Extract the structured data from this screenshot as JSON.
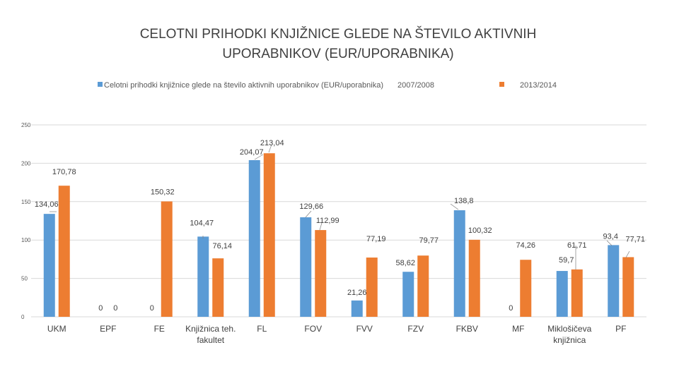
{
  "chart_data": {
    "type": "bar",
    "title_lines": [
      "CELOTNI PRIHODKI KNJIŽNICE GLEDE NA ŠTEVILO AKTIVNIH",
      "UPORABNIKOV (EUR/UPORABNIKA)"
    ],
    "legend": [
      {
        "label": "Celotni prihodki knjižnice glede na število aktivnih uporabnikov (EUR/uporabnika)",
        "color": "#5b9bd5"
      },
      {
        "label": "2007/2008",
        "color": ""
      },
      {
        "label": "2013/2014",
        "color": "#ed7d31"
      }
    ],
    "categories": [
      [
        "UKM"
      ],
      [
        "EPF"
      ],
      [
        "FE"
      ],
      [
        "Knjižnica teh.",
        "fakultet"
      ],
      [
        "FL"
      ],
      [
        "FOV"
      ],
      [
        "FVV"
      ],
      [
        "FZV"
      ],
      [
        "FKBV"
      ],
      [
        "MF"
      ],
      [
        "Miklošičeva",
        "knjižnica"
      ],
      [
        "PF"
      ]
    ],
    "series": [
      {
        "name": "2007/2008",
        "color": "#5b9bd5",
        "values": [
          134.06,
          0,
          0,
          104.47,
          204.07,
          129.66,
          21.26,
          58.62,
          138.8,
          0,
          59.7,
          93.4
        ],
        "labels": [
          "134,06",
          "0",
          "0",
          "104,47",
          "204,07",
          "129,66",
          "21,26",
          "58,62",
          "138,8",
          "0",
          "59,7",
          "93,4"
        ]
      },
      {
        "name": "2013/2014",
        "color": "#ed7d31",
        "values": [
          170.78,
          0,
          150.32,
          76.14,
          213.04,
          112.99,
          77.19,
          79.77,
          100.32,
          74.26,
          61.71,
          77.71
        ],
        "labels": [
          "170,78",
          "0",
          "150,32",
          "76,14",
          "213,04",
          "112,99",
          "77,19",
          "79,77",
          "100,32",
          "74,26",
          "61,71",
          "77,71"
        ]
      }
    ],
    "yticks": [
      0,
      50,
      100,
      150,
      200,
      250
    ],
    "ylim": [
      0,
      250
    ],
    "grid": true,
    "legend_position": "top"
  }
}
